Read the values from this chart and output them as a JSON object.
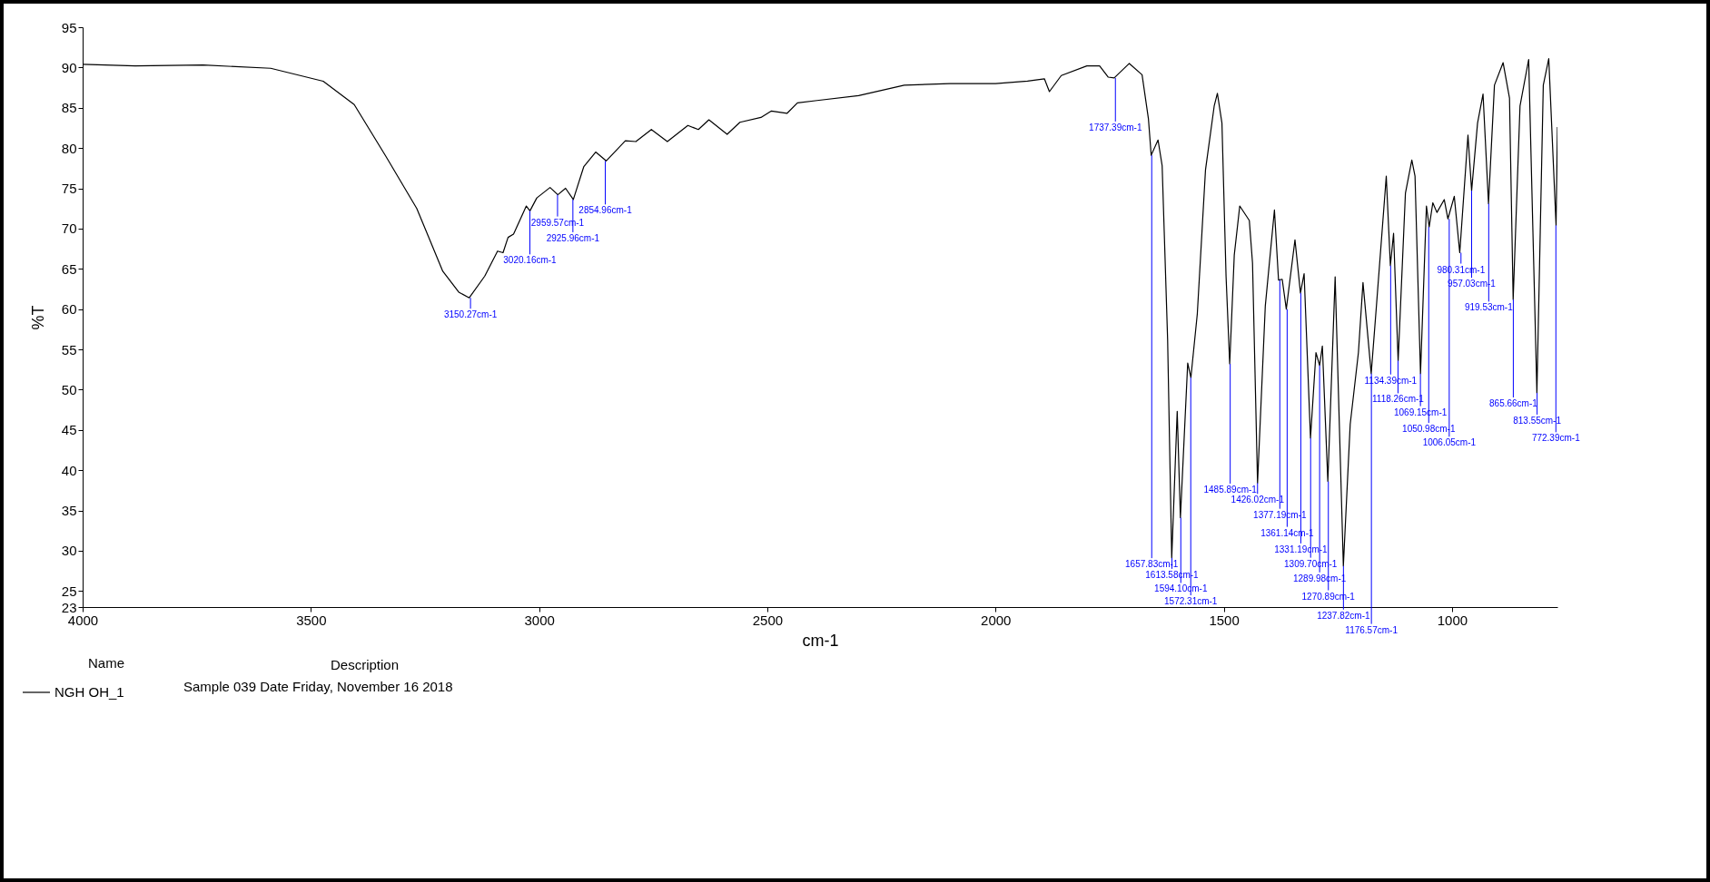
{
  "chart_data": {
    "type": "line",
    "xlabel": "cm-1",
    "ylabel": "%T",
    "legend_title": "Name",
    "legend": "bottom left",
    "grid": false,
    "xlim": [
      4000,
      769
    ],
    "xticks": [
      4000,
      3500,
      3000,
      2500,
      2000,
      1500,
      1000
    ],
    "ylim": [
      23,
      95
    ],
    "yticks": [
      23,
      25,
      30,
      35,
      40,
      45,
      50,
      55,
      60,
      65,
      70,
      75,
      80,
      85,
      90,
      95
    ],
    "series": [
      {
        "name": "NGH OH_1",
        "color": "#000000",
        "x": [
          4000,
          3885,
          3736,
          3588,
          3473,
          3405,
          3336,
          3268,
          3211,
          3176,
          3153,
          3119,
          3091,
          3079,
          3068,
          3056,
          3028,
          3020,
          3005,
          2976,
          2959,
          2942,
          2925,
          2902,
          2876,
          2853,
          2811,
          2788,
          2754,
          2719,
          2674,
          2651,
          2628,
          2588,
          2560,
          2514,
          2491,
          2457,
          2434,
          2391,
          2300,
          2200,
          2100,
          2000,
          1930,
          1893,
          1882,
          1856,
          1800,
          1772,
          1753,
          1740,
          1707,
          1679,
          1665,
          1659,
          1644,
          1635,
          1623,
          1614,
          1602,
          1595,
          1579,
          1572,
          1558,
          1540,
          1521,
          1514,
          1504,
          1495,
          1487,
          1477,
          1465,
          1444,
          1437,
          1426,
          1409,
          1389,
          1380,
          1372,
          1363,
          1344,
          1332,
          1324,
          1310,
          1298,
          1290,
          1284,
          1272,
          1256,
          1238,
          1223,
          1205,
          1195,
          1177,
          1165,
          1144,
          1135,
          1128,
          1118,
          1102,
          1088,
          1081,
          1069,
          1056,
          1050,
          1042,
          1033,
          1017,
          1009,
          995,
          983,
          965,
          957,
          944,
          932,
          920,
          907,
          888,
          874,
          866,
          851,
          832,
          814,
          800,
          788,
          772,
          769
        ],
        "values": [
          90.4,
          90.2,
          90.3,
          89.9,
          88.3,
          85.4,
          79.0,
          72.5,
          64.7,
          62.1,
          61.4,
          64.1,
          67.2,
          67.0,
          68.9,
          69.3,
          72.8,
          72.2,
          73.8,
          75.1,
          74.2,
          75.0,
          73.6,
          77.7,
          79.5,
          78.4,
          80.9,
          80.8,
          82.3,
          80.8,
          82.8,
          82.3,
          83.5,
          81.7,
          83.2,
          83.8,
          84.6,
          84.3,
          85.6,
          85.9,
          86.5,
          87.8,
          88.0,
          88.0,
          88.3,
          88.6,
          87.0,
          89.0,
          90.2,
          90.2,
          88.8,
          88.7,
          90.5,
          89.1,
          83.6,
          79.1,
          81.0,
          77.8,
          56.2,
          29.1,
          47.3,
          34.1,
          53.3,
          51.5,
          59.4,
          77.3,
          85.2,
          86.8,
          83.1,
          64.1,
          53.2,
          66.7,
          72.8,
          71.0,
          65.7,
          38.4,
          60.4,
          72.3,
          63.6,
          63.7,
          60.0,
          68.6,
          62.0,
          64.4,
          44.0,
          54.6,
          53.0,
          55.4,
          38.6,
          64.0,
          28.1,
          45.7,
          54.6,
          63.3,
          52.0,
          60.8,
          76.5,
          65.4,
          69.4,
          53.6,
          74.4,
          78.5,
          76.5,
          52.0,
          72.8,
          70.2,
          73.2,
          72.0,
          73.6,
          71.2,
          74.0,
          67.0,
          81.6,
          74.7,
          83.1,
          86.7,
          73.1,
          87.8,
          90.6,
          86.2,
          61.2,
          85.2,
          91.0,
          49.6,
          87.8,
          91.1,
          70.4,
          82.6
        ]
      }
    ],
    "annotations": [
      {
        "text": "3150.27cm-1",
        "x": 3150.27,
        "y": 61.4
      },
      {
        "text": "3020.16cm-1",
        "x": 3020.16,
        "y": 72.2
      },
      {
        "text": "2959.57cm-1",
        "x": 2959.57,
        "y": 74.2
      },
      {
        "text": "2925.96cm-1",
        "x": 2925.96,
        "y": 73.6
      },
      {
        "text": "2854.96cm-1",
        "x": 2854.96,
        "y": 78.4
      },
      {
        "text": "1737.39cm-1",
        "x": 1737.39,
        "y": 88.7
      },
      {
        "text": "1657.83cm-1",
        "x": 1657.83,
        "y": 79.1
      },
      {
        "text": "1613.58cm-1",
        "x": 1613.58,
        "y": 29.1
      },
      {
        "text": "1594.10cm-1",
        "x": 1594.1,
        "y": 34.1
      },
      {
        "text": "1572.31cm-1",
        "x": 1572.31,
        "y": 51.5
      },
      {
        "text": "1485.89cm-1",
        "x": 1485.89,
        "y": 53.2
      },
      {
        "text": "1426.02cm-1",
        "x": 1426.02,
        "y": 38.4
      },
      {
        "text": "1377.19cm-1",
        "x": 1377.19,
        "y": 63.6
      },
      {
        "text": "1361.14cm-1",
        "x": 1361.14,
        "y": 60.0
      },
      {
        "text": "1331.19cm-1",
        "x": 1331.19,
        "y": 62.0
      },
      {
        "text": "1309.70cm-1",
        "x": 1309.7,
        "y": 44.0
      },
      {
        "text": "1289.98cm-1",
        "x": 1289.98,
        "y": 53.0
      },
      {
        "text": "1270.89cm-1",
        "x": 1270.89,
        "y": 38.6
      },
      {
        "text": "1237.82cm-1",
        "x": 1237.82,
        "y": 28.1
      },
      {
        "text": "1176.57cm-1",
        "x": 1176.57,
        "y": 52.0
      },
      {
        "text": "1134.39cm-1",
        "x": 1134.39,
        "y": 65.4
      },
      {
        "text": "1118.26cm-1",
        "x": 1118.26,
        "y": 53.6
      },
      {
        "text": "1069.15cm-1",
        "x": 1069.15,
        "y": 52.0
      },
      {
        "text": "1050.98cm-1",
        "x": 1050.98,
        "y": 70.2
      },
      {
        "text": "1006.05cm-1",
        "x": 1006.05,
        "y": 71.2
      },
      {
        "text": "980.31cm-1",
        "x": 980.31,
        "y": 67.0
      },
      {
        "text": "957.03cm-1",
        "x": 957.03,
        "y": 74.7
      },
      {
        "text": "919.53cm-1",
        "x": 919.53,
        "y": 73.1
      },
      {
        "text": "865.66cm-1",
        "x": 865.66,
        "y": 61.2
      },
      {
        "text": "813.55cm-1",
        "x": 813.55,
        "y": 49.6
      },
      {
        "text": "772.39cm-1",
        "x": 772.39,
        "y": 70.4
      },
      "Description",
      "Sample 039 Date Friday, November 16 2018"
    ]
  }
}
